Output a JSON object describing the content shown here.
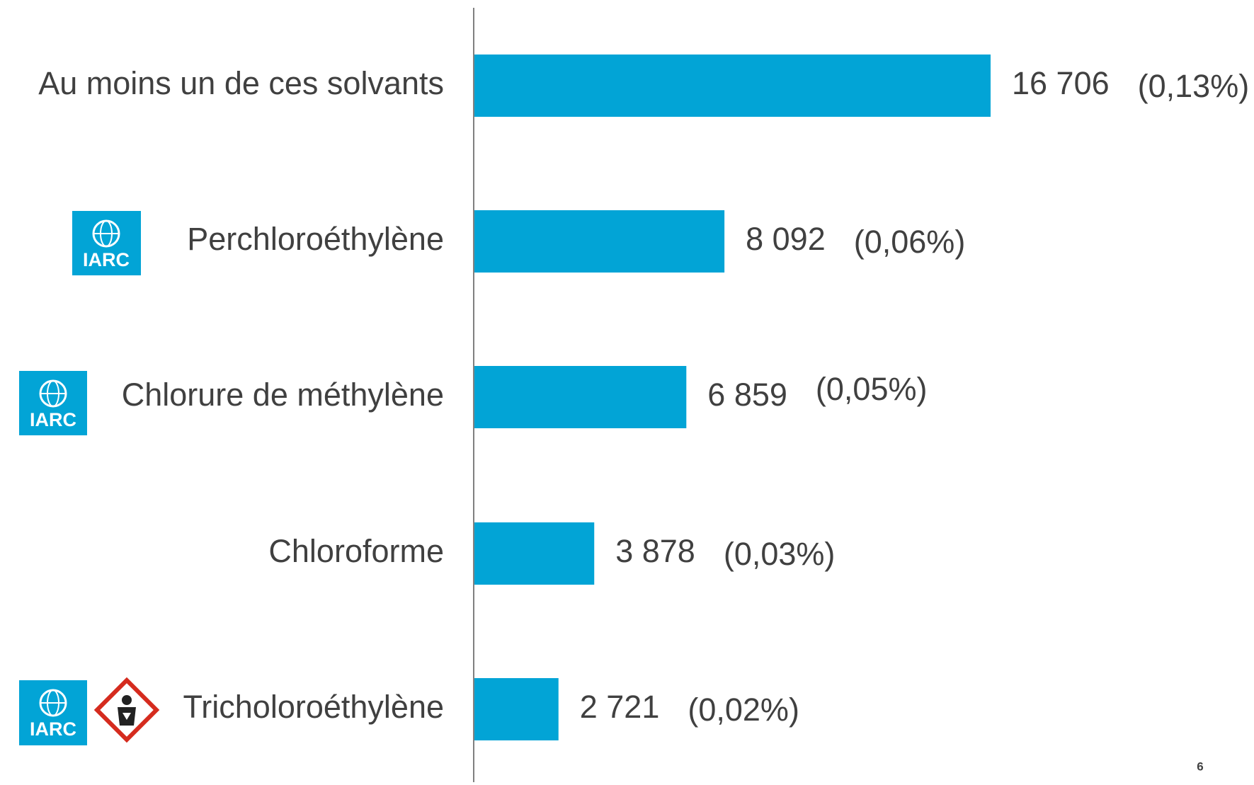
{
  "chart_data": {
    "type": "bar",
    "orientation": "horizontal",
    "categories": [
      "Au moins un de ces solvants",
      "Perchloroéthylène",
      "Chlorure de méthylène",
      "Chloroforme",
      "Tricholoroéthylène"
    ],
    "values": [
      16706,
      8092,
      6859,
      3878,
      2721
    ],
    "value_labels": [
      "16 706",
      "8 092",
      "6 859",
      "3 878",
      "2 721"
    ],
    "shares": [
      0.13,
      0.06,
      0.05,
      0.03,
      0.02
    ],
    "share_labels": [
      "(0,13%)",
      "(0,06%)",
      "(0,05%)",
      "(0,03%)",
      "(0,02%)"
    ],
    "color": "#02a4d6"
  },
  "iarc_label": "IARC",
  "page_number": "6"
}
